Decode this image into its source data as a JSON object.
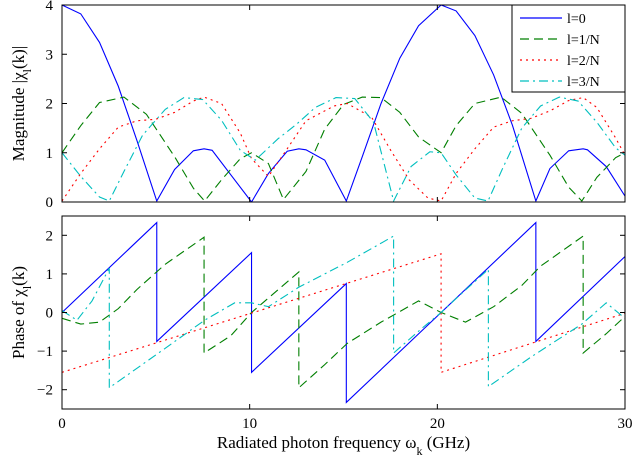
{
  "chart_data": [
    {
      "type": "line",
      "ylabel": "Magnitude |χ_l(k)|",
      "xlabel": "",
      "xlim": [
        0,
        30
      ],
      "ylim": [
        0,
        4
      ],
      "xticks": [
        0,
        10,
        20,
        30
      ],
      "yticks": [
        0,
        1,
        2,
        3,
        4
      ],
      "legend": {
        "placement": "top-right",
        "entries": [
          "l=0",
          "l=1/N",
          "l=2/N",
          "l=3/N"
        ]
      },
      "series": [
        {
          "name": "l=0",
          "color": "#0000ff",
          "dash": "solid",
          "x": [
            0,
            1,
            2,
            3,
            4,
            5.05,
            6,
            7,
            7.57,
            8,
            9,
            10.1,
            11,
            12,
            12.62,
            13,
            14,
            15.15,
            16,
            17,
            18,
            19,
            20.2,
            21,
            22,
            23,
            24,
            25.25,
            26,
            27,
            27.77,
            28,
            29,
            30
          ],
          "values": [
            4.0,
            3.82,
            3.24,
            2.35,
            1.24,
            0.02,
            0.66,
            1.04,
            1.08,
            1.05,
            0.55,
            0.0,
            0.58,
            1.03,
            1.08,
            1.06,
            0.85,
            0.02,
            0.92,
            2.0,
            2.92,
            3.58,
            4.0,
            3.88,
            3.38,
            2.58,
            1.56,
            0.02,
            0.68,
            1.04,
            1.08,
            1.06,
            0.72,
            0.12
          ]
        },
        {
          "name": "l=1/N",
          "color": "#007f00",
          "dash": "dashed",
          "x": [
            0,
            1,
            2,
            3.3,
            4.5,
            6,
            7,
            7.6,
            8.5,
            9.5,
            10.1,
            11,
            11.8,
            13,
            14,
            15,
            16,
            17,
            18,
            19,
            20.2,
            21,
            22,
            23.4,
            24.5,
            26,
            27,
            27.7,
            28.5,
            29.5,
            30
          ],
          "values": [
            1.0,
            1.55,
            2.02,
            2.13,
            1.78,
            0.92,
            0.28,
            0.02,
            0.45,
            0.88,
            1.0,
            0.78,
            0.05,
            0.62,
            1.48,
            1.98,
            2.13,
            2.12,
            1.82,
            1.32,
            1.0,
            1.55,
            2.0,
            2.13,
            1.8,
            0.95,
            0.3,
            0.02,
            0.5,
            0.9,
            1.0
          ]
        },
        {
          "name": "l=2/N",
          "color": "#ff0000",
          "dash": "dotted",
          "x": [
            0,
            1,
            2,
            3,
            4,
            5,
            6,
            7,
            7.57,
            8.5,
            9.5,
            10.1,
            11,
            12,
            13,
            14.5,
            15.2,
            16.5,
            17.5,
            18.5,
            19.5,
            20.2,
            21,
            22,
            23,
            24,
            25,
            26,
            27,
            27.77,
            28.5,
            29.5,
            30
          ],
          "values": [
            0.02,
            0.58,
            1.08,
            1.52,
            1.65,
            1.68,
            1.82,
            2.05,
            2.13,
            2.0,
            1.4,
            0.88,
            0.52,
            1.08,
            1.65,
            1.95,
            2.0,
            1.72,
            1.06,
            0.45,
            0.08,
            0.02,
            0.58,
            1.08,
            1.52,
            1.65,
            1.7,
            1.85,
            2.06,
            2.12,
            1.92,
            1.3,
            0.95
          ]
        },
        {
          "name": "l=3/N",
          "color": "#00bfbf",
          "dash": "dashdot",
          "x": [
            0,
            1,
            2,
            2.52,
            3.3,
            4.3,
            5.5,
            6.5,
            7.5,
            8.5,
            9.5,
            10.3,
            11.5,
            12.5,
            13.5,
            14.6,
            15.6,
            16.6,
            17.67,
            18.6,
            19.6,
            20.2,
            21,
            22,
            22.7,
            23.5,
            24.5,
            25.5,
            26.5,
            27.5,
            28.5,
            29.5,
            30
          ],
          "values": [
            1.0,
            0.52,
            0.1,
            0.02,
            0.62,
            1.36,
            1.88,
            2.12,
            2.08,
            1.66,
            1.05,
            0.85,
            1.28,
            1.58,
            1.92,
            2.12,
            2.1,
            1.62,
            0.02,
            0.72,
            1.02,
            1.0,
            0.55,
            0.08,
            0.02,
            0.7,
            1.5,
            1.95,
            2.13,
            2.05,
            1.62,
            1.1,
            0.95
          ]
        }
      ]
    },
    {
      "type": "line",
      "ylabel": "Phase of χ_l(k)",
      "xlabel": "Radiated photon frequency ω_k (GHz)",
      "xlim": [
        0,
        30
      ],
      "ylim": [
        -2.5,
        2.5
      ],
      "xticks": [
        0,
        10,
        20,
        30
      ],
      "yticks": [
        -2,
        -1,
        0,
        1,
        2
      ],
      "series": [
        {
          "name": "l=0",
          "color": "#0000ff",
          "dash": "solid",
          "x": [
            0,
            5.05,
            5.05,
            10.1,
            10.1,
            15.15,
            15.15,
            20.2,
            25.25,
            25.25,
            30
          ],
          "values": [
            0.0,
            2.33,
            -0.75,
            1.55,
            -1.55,
            0.75,
            -2.33,
            0.0,
            2.33,
            -0.75,
            1.45
          ]
        },
        {
          "name": "l=1/N",
          "color": "#007f00",
          "dash": "dashed",
          "x": [
            0,
            1,
            2,
            3,
            4,
            5.5,
            7.57,
            7.57,
            9,
            10.1,
            12.62,
            12.62,
            14,
            15.2,
            17,
            19,
            20.2,
            21.5,
            23,
            24.5,
            25.5,
            27.77,
            27.77,
            29,
            30
          ],
          "values": [
            -0.15,
            -0.3,
            -0.25,
            0.1,
            0.6,
            1.25,
            1.95,
            -1.05,
            -0.6,
            0.0,
            1.05,
            -1.95,
            -1.35,
            -0.8,
            -0.25,
            0.3,
            0.0,
            -0.25,
            0.15,
            0.7,
            1.2,
            1.98,
            -1.05,
            -0.55,
            -0.1
          ]
        },
        {
          "name": "l=2/N",
          "color": "#ff0000",
          "dash": "dotted",
          "x": [
            0,
            20.2,
            20.2,
            30
          ],
          "values": [
            -1.55,
            1.52,
            -1.55,
            -0.02
          ]
        },
        {
          "name": "l=3/N",
          "color": "#00bfbf",
          "dash": "dashdot",
          "x": [
            0,
            0.8,
            1.6,
            2.52,
            2.52,
            5,
            7.6,
            9.2,
            10.1,
            11,
            12.6,
            15.2,
            17.67,
            17.67,
            19.2,
            20.2,
            21.2,
            22.72,
            22.72,
            25,
            27.7,
            29,
            30
          ],
          "values": [
            0.05,
            -0.2,
            0.3,
            1.15,
            -1.95,
            -1.1,
            -0.2,
            0.25,
            0.25,
            0.15,
            0.65,
            1.3,
            1.98,
            -1.05,
            -0.4,
            0.0,
            0.45,
            1.12,
            -1.92,
            -1.15,
            -0.3,
            0.25,
            -0.15
          ]
        }
      ]
    }
  ]
}
